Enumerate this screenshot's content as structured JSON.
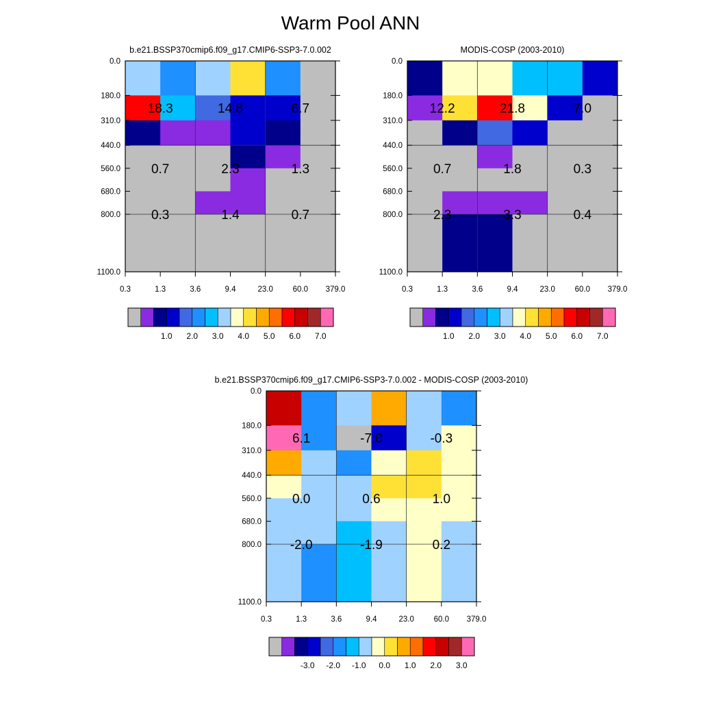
{
  "title": "Warm Pool ANN",
  "palettes": {
    "abs": [
      "#bebebe",
      "#8a2be2",
      "#00008b",
      "#0000cd",
      "#4169e1",
      "#1e90ff",
      "#00bfff",
      "#a0d2ff",
      "#ffffc8",
      "#ffe135",
      "#ffaa00",
      "#ff6e00",
      "#ff0000",
      "#c80000",
      "#a02828",
      "#ff69b4"
    ],
    "diff": [
      "#bebebe",
      "#8a2be2",
      "#00008b",
      "#0000cd",
      "#4169e1",
      "#1e90ff",
      "#00bfff",
      "#a0d2ff",
      "#ffffc8",
      "#ffe135",
      "#ffaa00",
      "#ff6e00",
      "#ff0000",
      "#c80000",
      "#a02828",
      "#ff69b4"
    ]
  },
  "chart_data": [
    {
      "type": "heatmap",
      "title": "b.e21.BSSP370cmip6.f09_g17.CMIP6-SSP3-7.0.002",
      "x_ticks": [
        "0.3",
        "1.3",
        "3.6",
        "9.4",
        "23.0",
        "60.0",
        "379.0"
      ],
      "y_ticks": [
        "0.0",
        "180.0",
        "310.0",
        "440.0",
        "560.0",
        "680.0",
        "800.0",
        "1100.0"
      ],
      "cell_color_index": [
        [
          7,
          5,
          7,
          9,
          5,
          0
        ],
        [
          12,
          6,
          4,
          3,
          3,
          0
        ],
        [
          2,
          1,
          1,
          3,
          2,
          0
        ],
        [
          0,
          0,
          0,
          2,
          1,
          0
        ],
        [
          0,
          0,
          0,
          1,
          0,
          0
        ],
        [
          0,
          0,
          1,
          1,
          0,
          0
        ],
        [
          0,
          0,
          0,
          0,
          0,
          0
        ]
      ],
      "annotations": [
        {
          "text": "18.3",
          "col": 1,
          "row": 1.5
        },
        {
          "text": "14.8",
          "col": 3,
          "row": 1.5
        },
        {
          "text": "6.7",
          "col": 5,
          "row": 1.5
        },
        {
          "text": "0.7",
          "col": 1,
          "row": 4
        },
        {
          "text": "2.3",
          "col": 3,
          "row": 4
        },
        {
          "text": "1.3",
          "col": 5,
          "row": 4
        },
        {
          "text": "0.3",
          "col": 1,
          "row": 6
        },
        {
          "text": "1.4",
          "col": 3,
          "row": 6
        },
        {
          "text": "0.7",
          "col": 5,
          "row": 6
        }
      ],
      "colorbar_palette": "abs",
      "colorbar_labels": [
        "1.0",
        "2.0",
        "3.0",
        "4.0",
        "5.0",
        "6.0",
        "7.0"
      ]
    },
    {
      "type": "heatmap",
      "title": "MODIS-COSP (2003-2010)",
      "x_ticks": [
        "0.3",
        "1.3",
        "3.6",
        "9.4",
        "23.0",
        "60.0",
        "379.0"
      ],
      "y_ticks": [
        "0.0",
        "180.0",
        "310.0",
        "440.0",
        "560.0",
        "680.0",
        "800.0",
        "1100.0"
      ],
      "cell_color_index": [
        [
          2,
          8,
          8,
          6,
          6,
          3
        ],
        [
          1,
          9,
          12,
          8,
          3,
          0
        ],
        [
          0,
          2,
          4,
          3,
          0,
          0
        ],
        [
          0,
          0,
          1,
          0,
          0,
          0
        ],
        [
          0,
          0,
          0,
          0,
          0,
          0
        ],
        [
          0,
          1,
          1,
          1,
          0,
          0
        ],
        [
          0,
          2,
          2,
          0,
          0,
          0
        ]
      ],
      "annotations": [
        {
          "text": "12.2",
          "col": 1,
          "row": 1.5
        },
        {
          "text": "21.8",
          "col": 3,
          "row": 1.5
        },
        {
          "text": "7.0",
          "col": 5,
          "row": 1.5
        },
        {
          "text": "0.7",
          "col": 1,
          "row": 4
        },
        {
          "text": "1.8",
          "col": 3,
          "row": 4
        },
        {
          "text": "0.3",
          "col": 5,
          "row": 4
        },
        {
          "text": "2.3",
          "col": 1,
          "row": 6
        },
        {
          "text": "3.3",
          "col": 3,
          "row": 6
        },
        {
          "text": "0.4",
          "col": 5,
          "row": 6
        }
      ],
      "colorbar_palette": "abs",
      "colorbar_labels": [
        "1.0",
        "2.0",
        "3.0",
        "4.0",
        "5.0",
        "6.0",
        "7.0"
      ]
    },
    {
      "type": "heatmap",
      "title": "b.e21.BSSP370cmip6.f09_g17.CMIP6-SSP3-7.0.002 - MODIS-COSP (2003-2010)",
      "x_ticks": [
        "0.3",
        "1.3",
        "3.6",
        "9.4",
        "23.0",
        "60.0",
        "379.0"
      ],
      "y_ticks": [
        "0.0",
        "180.0",
        "310.0",
        "440.0",
        "560.0",
        "680.0",
        "800.0",
        "1100.0"
      ],
      "cell_color_index": [
        [
          13,
          5,
          7,
          10,
          7,
          5
        ],
        [
          15,
          5,
          0,
          3,
          7,
          8
        ],
        [
          10,
          7,
          5,
          8,
          9,
          8
        ],
        [
          8,
          7,
          7,
          9,
          9,
          8
        ],
        [
          7,
          7,
          7,
          8,
          8,
          8
        ],
        [
          7,
          7,
          6,
          7,
          8,
          7
        ],
        [
          7,
          5,
          6,
          7,
          8,
          7
        ]
      ],
      "annotations": [
        {
          "text": "6.1",
          "col": 1,
          "row": 1.5
        },
        {
          "text": "-7.0",
          "col": 3,
          "row": 1.5
        },
        {
          "text": "-0.3",
          "col": 5,
          "row": 1.5
        },
        {
          "text": "0.0",
          "col": 1,
          "row": 4
        },
        {
          "text": "0.6",
          "col": 3,
          "row": 4
        },
        {
          "text": "1.0",
          "col": 5,
          "row": 4
        },
        {
          "text": "-2.0",
          "col": 1,
          "row": 6
        },
        {
          "text": "-1.9",
          "col": 3,
          "row": 6
        },
        {
          "text": "0.2",
          "col": 5,
          "row": 6
        }
      ],
      "colorbar_palette": "diff",
      "colorbar_labels": [
        "-3.0",
        "-2.0",
        "-1.0",
        "0.0",
        "1.0",
        "2.0",
        "3.0"
      ]
    }
  ]
}
